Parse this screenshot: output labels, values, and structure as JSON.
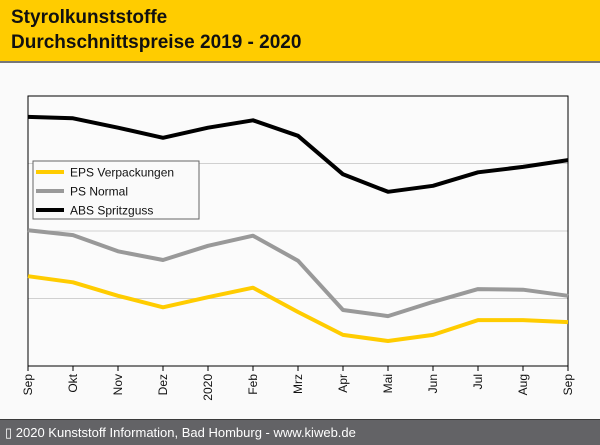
{
  "header": {
    "title_line1": "Styrolkunststoffe",
    "title_line2": "Durchschnittspreise 2019 - 2020"
  },
  "footer": {
    "copyright": "▯ 2020 Kunststoff Information, Bad Homburg - www.kiweb.de"
  },
  "colors": {
    "header_bg": "#ffcc00",
    "footer_bg": "#636366",
    "eps": "#ffcc00",
    "ps": "#999999",
    "abs": "#000000",
    "grid": "#d0d0d0"
  },
  "chart_data": {
    "type": "line",
    "title": "Styrolkunststoffe Durchschnittspreise 2019 - 2020",
    "xlabel": "",
    "ylabel": "",
    "y_tick_labels_visible": false,
    "ylim": [
      0,
      4
    ],
    "y_gridlines": [
      1,
      2,
      3
    ],
    "grid": true,
    "legend_position": "upper-left",
    "categories": [
      "Sep",
      "Okt",
      "Nov",
      "Dez",
      "2020",
      "Feb",
      "Mrz",
      "Apr",
      "Mai",
      "Jun",
      "Jul",
      "Aug",
      "Sep"
    ],
    "series": [
      {
        "name": "EPS Verpackungen",
        "color": "#ffcc00",
        "values": [
          1.33,
          1.24,
          1.04,
          0.87,
          1.02,
          1.16,
          0.8,
          0.46,
          0.37,
          0.46,
          0.68,
          0.68,
          0.65
        ]
      },
      {
        "name": "PS Normal",
        "color": "#999999",
        "values": [
          2.01,
          1.94,
          1.7,
          1.57,
          1.78,
          1.93,
          1.56,
          0.83,
          0.74,
          0.95,
          1.14,
          1.13,
          1.04
        ]
      },
      {
        "name": "ABS Spritzguss",
        "color": "#000000",
        "values": [
          3.69,
          3.67,
          3.53,
          3.38,
          3.53,
          3.64,
          3.41,
          2.84,
          2.58,
          2.67,
          2.87,
          2.95,
          3.05
        ]
      }
    ]
  }
}
